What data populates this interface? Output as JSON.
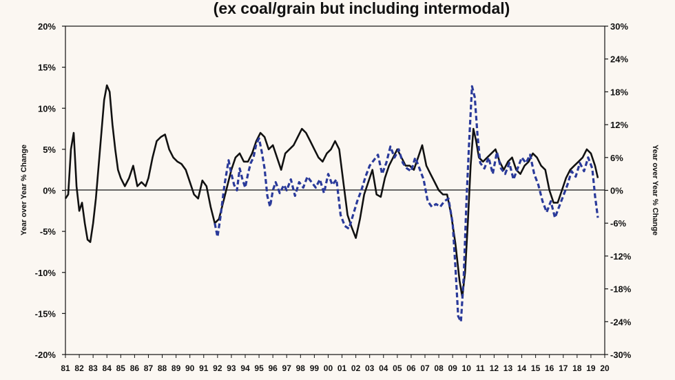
{
  "chart_data": {
    "type": "line",
    "title": "(ex coal/grain but including intermodal)",
    "ylabel": "Year over Year % Change",
    "y2label": "Year over Year % Change",
    "ylim": [
      -20,
      20
    ],
    "y2lim": [
      -30,
      30
    ],
    "yticks": [
      "20%",
      "15%",
      "10%",
      "5%",
      "0%",
      "-5%",
      "-10%",
      "-15%",
      "-20%"
    ],
    "y2ticks": [
      "30%",
      "24%",
      "18%",
      "12%",
      "6%",
      "0%",
      "-6%",
      "-12%",
      "-18%",
      "-24%",
      "-30%"
    ],
    "xticks": [
      "81",
      "82",
      "83",
      "84",
      "85",
      "86",
      "87",
      "88",
      "89",
      "90",
      "91",
      "92",
      "93",
      "94",
      "95",
      "96",
      "97",
      "98",
      "99",
      "00",
      "01",
      "02",
      "03",
      "04",
      "05",
      "06",
      "07",
      "08",
      "09",
      "10",
      "11",
      "12",
      "13",
      "14",
      "15",
      "16",
      "17",
      "18",
      "19",
      "20"
    ],
    "xlim": [
      1981,
      2020
    ],
    "grid": false,
    "colors": {
      "solid": "#111111",
      "dashed": "#2a3a9a",
      "background": "#fbf7f2"
    },
    "series": [
      {
        "style": "solid",
        "axis": "left",
        "x": [
          1981.0,
          1981.2,
          1981.4,
          1981.6,
          1981.8,
          1982.0,
          1982.2,
          1982.4,
          1982.6,
          1982.8,
          1983.0,
          1983.2,
          1983.4,
          1983.6,
          1983.8,
          1984.0,
          1984.2,
          1984.4,
          1984.6,
          1984.8,
          1985.0,
          1985.3,
          1985.6,
          1985.9,
          1986.2,
          1986.5,
          1986.8,
          1987.0,
          1987.3,
          1987.6,
          1987.9,
          1988.2,
          1988.5,
          1988.8,
          1989.1,
          1989.4,
          1989.7,
          1990.0,
          1990.3,
          1990.6,
          1990.9,
          1991.2,
          1991.5,
          1991.8,
          1992.1,
          1992.4,
          1992.7,
          1993.0,
          1993.3,
          1993.6,
          1993.9,
          1994.2,
          1994.5,
          1994.8,
          1995.1,
          1995.4,
          1995.7,
          1996.0,
          1996.3,
          1996.6,
          1996.9,
          1997.2,
          1997.5,
          1997.8,
          1998.1,
          1998.4,
          1998.7,
          1999.0,
          1999.3,
          1999.6,
          1999.9,
          2000.2,
          2000.5,
          2000.8,
          2001.1,
          2001.4,
          2001.7,
          2002.0,
          2002.3,
          2002.6,
          2002.9,
          2003.2,
          2003.5,
          2003.8,
          2004.1,
          2004.4,
          2004.7,
          2005.0,
          2005.3,
          2005.6,
          2005.9,
          2006.2,
          2006.5,
          2006.8,
          2007.1,
          2007.4,
          2007.7,
          2008.0,
          2008.3,
          2008.6,
          2008.9,
          2009.2,
          2009.5,
          2009.7,
          2009.9,
          2010.1,
          2010.3,
          2010.5,
          2010.7,
          2010.9,
          2011.2,
          2011.5,
          2011.8,
          2012.1,
          2012.4,
          2012.7,
          2013.0,
          2013.3,
          2013.6,
          2013.9,
          2014.2,
          2014.5,
          2014.8,
          2015.1,
          2015.4,
          2015.7,
          2016.0,
          2016.3,
          2016.6,
          2016.9,
          2017.2,
          2017.5,
          2017.8,
          2018.1,
          2018.4,
          2018.7,
          2019.0,
          2019.3,
          2019.5
        ],
        "values": [
          -1.0,
          -0.5,
          5.0,
          7.0,
          0.5,
          -2.5,
          -1.5,
          -4.0,
          -6.0,
          -6.3,
          -4.0,
          -1.0,
          3.0,
          7.0,
          11.0,
          12.8,
          12.0,
          8.0,
          5.0,
          2.5,
          1.5,
          0.5,
          1.5,
          3.0,
          0.5,
          1.0,
          0.5,
          1.5,
          4.0,
          6.0,
          6.5,
          6.8,
          5.0,
          4.0,
          3.5,
          3.2,
          2.5,
          1.0,
          -0.5,
          -1.0,
          1.2,
          0.5,
          -2.0,
          -4.0,
          -3.5,
          -1.5,
          0.5,
          2.5,
          4.0,
          4.5,
          3.5,
          3.5,
          4.5,
          6.0,
          7.0,
          6.5,
          5.0,
          5.5,
          4.0,
          2.5,
          4.5,
          5.0,
          5.5,
          6.5,
          7.5,
          7.0,
          6.0,
          5.0,
          4.0,
          3.5,
          4.5,
          5.0,
          6.0,
          5.0,
          1.0,
          -3.0,
          -4.5,
          -5.8,
          -3.5,
          -0.5,
          1.0,
          2.5,
          -0.5,
          -0.8,
          1.5,
          3.0,
          4.0,
          5.0,
          4.0,
          3.0,
          3.0,
          2.5,
          4.0,
          5.5,
          3.0,
          2.0,
          1.0,
          0.0,
          -0.5,
          -0.5,
          -3.0,
          -6.5,
          -11.0,
          -13.0,
          -10.0,
          -4.0,
          3.0,
          7.5,
          6.0,
          4.0,
          3.5,
          4.0,
          4.5,
          5.0,
          3.5,
          2.5,
          3.5,
          4.0,
          2.5,
          2.0,
          3.0,
          3.5,
          4.5,
          4.0,
          3.0,
          2.5,
          0.0,
          -1.5,
          -1.5,
          0.0,
          1.5,
          2.5,
          3.0,
          3.5,
          4.0,
          5.0,
          4.5,
          3.0,
          1.5
        ]
      },
      {
        "style": "dashed",
        "axis": "right",
        "x": [
          1991.8,
          1992.0,
          1992.2,
          1992.5,
          1992.8,
          1993.0,
          1993.2,
          1993.4,
          1993.6,
          1993.8,
          1994.0,
          1994.2,
          1994.4,
          1994.6,
          1994.8,
          1995.0,
          1995.2,
          1995.4,
          1995.6,
          1995.8,
          1996.0,
          1996.2,
          1996.5,
          1996.8,
          1997.0,
          1997.3,
          1997.6,
          1997.9,
          1998.2,
          1998.5,
          1998.8,
          1999.1,
          1999.4,
          1999.7,
          2000.0,
          2000.3,
          2000.6,
          2000.9,
          2001.2,
          2001.5,
          2001.8,
          2002.1,
          2002.4,
          2002.7,
          2003.0,
          2003.3,
          2003.6,
          2003.9,
          2004.2,
          2004.5,
          2004.8,
          2005.1,
          2005.4,
          2005.7,
          2006.0,
          2006.3,
          2006.6,
          2006.9,
          2007.2,
          2007.5,
          2007.8,
          2008.1,
          2008.4,
          2008.7,
          2009.0,
          2009.2,
          2009.4,
          2009.6,
          2009.8,
          2010.0,
          2010.2,
          2010.4,
          2010.6,
          2010.8,
          2011.0,
          2011.3,
          2011.6,
          2011.9,
          2012.2,
          2012.5,
          2012.8,
          2013.1,
          2013.4,
          2013.7,
          2014.0,
          2014.3,
          2014.6,
          2014.9,
          2015.2,
          2015.5,
          2015.8,
          2016.1,
          2016.4,
          2016.7,
          2017.0,
          2017.3,
          2017.6,
          2017.9,
          2018.2,
          2018.5,
          2018.8,
          2019.1,
          2019.3,
          2019.5
        ],
        "values": [
          -6.0,
          -8.5,
          -5.0,
          1.0,
          5.5,
          3.0,
          1.0,
          0.0,
          4.0,
          2.0,
          0.5,
          3.0,
          5.0,
          6.0,
          8.5,
          9.5,
          7.0,
          4.0,
          -1.0,
          -3.0,
          0.0,
          1.5,
          -0.5,
          1.0,
          0.0,
          2.0,
          -1.0,
          1.5,
          0.5,
          2.5,
          1.5,
          0.5,
          2.0,
          -0.5,
          3.0,
          1.0,
          2.0,
          -4.5,
          -6.5,
          -7.0,
          -4.5,
          -2.0,
          0.0,
          2.5,
          4.5,
          5.5,
          6.5,
          3.0,
          5.0,
          8.0,
          6.0,
          7.5,
          5.0,
          4.0,
          3.5,
          6.0,
          4.0,
          2.0,
          -2.0,
          -3.0,
          -2.5,
          -3.0,
          -2.0,
          -1.5,
          -6.0,
          -14.0,
          -23.0,
          -24.0,
          -16.0,
          -2.0,
          9.0,
          19.0,
          17.0,
          10.0,
          5.0,
          4.0,
          6.0,
          3.0,
          7.0,
          4.0,
          3.0,
          5.0,
          2.0,
          4.0,
          6.0,
          5.0,
          6.5,
          3.0,
          1.0,
          -2.0,
          -4.0,
          -2.0,
          -5.0,
          -3.0,
          -1.0,
          1.0,
          3.5,
          2.5,
          5.0,
          3.5,
          6.0,
          4.0,
          -1.0,
          -5.0
        ]
      }
    ]
  }
}
